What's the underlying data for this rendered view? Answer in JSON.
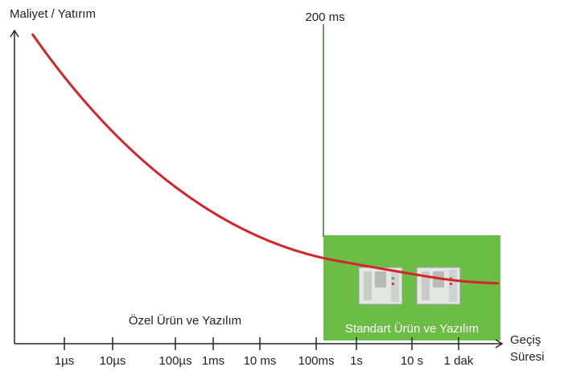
{
  "y_axis_label": "Maliyet / Yatırım",
  "x_axis_label": [
    "Geçiş",
    "Süresi"
  ],
  "threshold_label": "200 ms",
  "ticks": [
    "1µs",
    "10µs",
    "100µs",
    "1ms",
    "10 ms",
    "100ms",
    "1s",
    "10 s",
    "1 dak"
  ],
  "regions": {
    "custom": "Özel Ürün ve Yazılım",
    "standard": "Standart Ürün ve Yazılım"
  }
}
